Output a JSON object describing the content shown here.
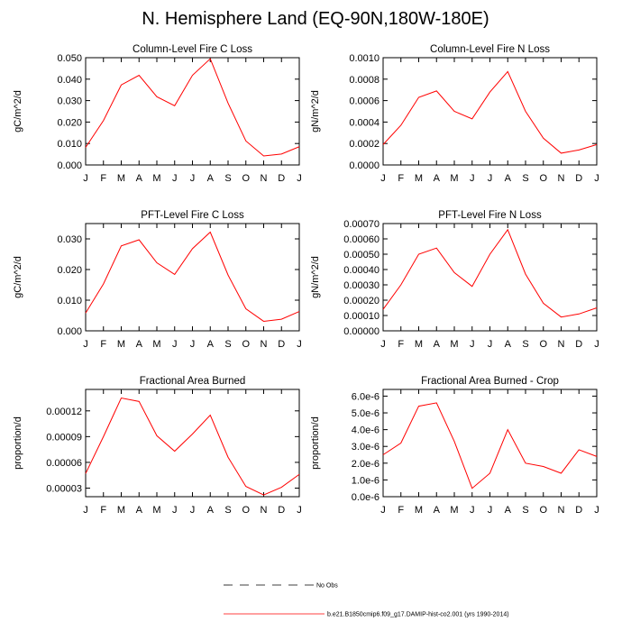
{
  "page": {
    "title": "N. Hemisphere Land (EQ-90N,180W-180E)"
  },
  "colors": {
    "model": "#ff0000",
    "obs": "#000000",
    "axis": "#000000"
  },
  "legend": {
    "obs_label": "No Obs",
    "model_label": "b.e21.B1850cmip6.f09_g17.DAMIP-hist-co2.001 (yrs 1990-2014)"
  },
  "chart_data": [
    {
      "type": "line",
      "title": "Column-Level Fire C Loss",
      "xlabel": "",
      "ylabel": "gC/m^2/d",
      "categories": [
        "J",
        "F",
        "M",
        "A",
        "M",
        "J",
        "J",
        "A",
        "S",
        "O",
        "N",
        "D",
        "J"
      ],
      "ylim": [
        0,
        0.05
      ],
      "yticks": [
        0,
        0.01,
        0.02,
        0.03,
        0.04,
        0.05
      ],
      "yticklabels": [
        "0.000",
        "0.010",
        "0.020",
        "0.030",
        "0.040",
        "0.050"
      ],
      "series": [
        {
          "values": [
            0.0082,
            0.0207,
            0.0373,
            0.0418,
            0.0318,
            0.0276,
            0.0418,
            0.0495,
            0.0288,
            0.0112,
            0.0042,
            0.0051,
            0.0085
          ]
        }
      ]
    },
    {
      "type": "line",
      "title": "Column-Level Fire N Loss",
      "xlabel": "",
      "ylabel": "gN/m^2/d",
      "categories": [
        "J",
        "F",
        "M",
        "A",
        "M",
        "J",
        "J",
        "A",
        "S",
        "O",
        "N",
        "D",
        "J"
      ],
      "ylim": [
        0,
        0.001
      ],
      "yticks": [
        0,
        0.0002,
        0.0004,
        0.0006,
        0.0008,
        0.001
      ],
      "yticklabels": [
        "0.0000",
        "0.0002",
        "0.0004",
        "0.0006",
        "0.0008",
        "0.0010"
      ],
      "series": [
        {
          "values": [
            0.00019,
            0.00037,
            0.00063,
            0.00069,
            0.0005,
            0.00043,
            0.00068,
            0.00087,
            0.0005,
            0.00025,
            0.00011,
            0.00014,
            0.00019
          ]
        }
      ]
    },
    {
      "type": "line",
      "title": "PFT-Level Fire C Loss",
      "xlabel": "",
      "ylabel": "gC/m^2/d",
      "categories": [
        "J",
        "F",
        "M",
        "A",
        "M",
        "J",
        "J",
        "A",
        "S",
        "O",
        "N",
        "D",
        "J"
      ],
      "ylim": [
        0,
        0.035
      ],
      "yticks": [
        0,
        0.01,
        0.02,
        0.03
      ],
      "yticklabels": [
        "0.000",
        "0.010",
        "0.020",
        "0.030"
      ],
      "series": [
        {
          "values": [
            0.0058,
            0.0153,
            0.0277,
            0.0297,
            0.0222,
            0.0184,
            0.0268,
            0.0322,
            0.0182,
            0.0072,
            0.0031,
            0.0038,
            0.0063
          ]
        }
      ]
    },
    {
      "type": "line",
      "title": "PFT-Level Fire N Loss",
      "xlabel": "",
      "ylabel": "gN/m^2/d",
      "categories": [
        "J",
        "F",
        "M",
        "A",
        "M",
        "J",
        "J",
        "A",
        "S",
        "O",
        "N",
        "D",
        "J"
      ],
      "ylim": [
        0,
        0.0007
      ],
      "yticks": [
        0,
        0.0001,
        0.0002,
        0.0003,
        0.0004,
        0.0005,
        0.0006,
        0.0007
      ],
      "yticklabels": [
        "0.00000",
        "0.00010",
        "0.00020",
        "0.00030",
        "0.00040",
        "0.00050",
        "0.00060",
        "0.00070"
      ],
      "series": [
        {
          "values": [
            0.00014,
            0.0003,
            0.0005,
            0.00054,
            0.00038,
            0.00029,
            0.0005,
            0.00066,
            0.00037,
            0.00018,
            9e-05,
            0.00011,
            0.00015
          ]
        }
      ]
    },
    {
      "type": "line",
      "title": "Fractional Area Burned",
      "xlabel": "",
      "ylabel": "proportion/d",
      "categories": [
        "J",
        "F",
        "M",
        "A",
        "M",
        "J",
        "J",
        "A",
        "S",
        "O",
        "N",
        "D",
        "J"
      ],
      "ylim": [
        2e-05,
        0.000145
      ],
      "yticks": [
        3e-05,
        6e-05,
        9e-05,
        0.00012
      ],
      "yticklabels": [
        "0.00003",
        "0.00006",
        "0.00009",
        "0.00012"
      ],
      "series": [
        {
          "values": [
            4.7e-05,
            9e-05,
            0.000135,
            0.000131,
            9.1e-05,
            7.3e-05,
            9.3e-05,
            0.000115,
            6.6e-05,
            3.2e-05,
            2.2e-05,
            3.1e-05,
            4.6e-05
          ]
        }
      ]
    },
    {
      "type": "line",
      "title": "Fractional Area Burned - Crop",
      "xlabel": "",
      "ylabel": "proportion/d",
      "categories": [
        "J",
        "F",
        "M",
        "A",
        "M",
        "J",
        "J",
        "A",
        "S",
        "O",
        "N",
        "D",
        "J"
      ],
      "ylim": [
        0,
        6.4e-06
      ],
      "yticks": [
        0,
        1e-06,
        2e-06,
        3e-06,
        4e-06,
        5e-06,
        6e-06
      ],
      "yticklabels": [
        "0.0e-6",
        "1.0e-6",
        "2.0e-6",
        "3.0e-6",
        "4.0e-6",
        "5.0e-6",
        "6.0e-6"
      ],
      "series": [
        {
          "values": [
            2.5e-06,
            3.2e-06,
            5.4e-06,
            5.6e-06,
            3.3e-06,
            5e-07,
            1.4e-06,
            4e-06,
            2e-06,
            1.8e-06,
            1.4e-06,
            2.8e-06,
            2.4e-06
          ]
        }
      ]
    }
  ]
}
